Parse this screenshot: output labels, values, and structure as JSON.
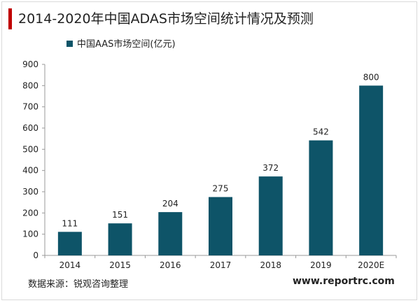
{
  "title": "2014-2020年中国ADAS市场空间统计情况及预测",
  "source": "数据来源：锐观咨询整理",
  "website": "www.reportrc.com",
  "colors": {
    "accent": "#c00000",
    "bar": "#0e5468"
  },
  "chart_data": {
    "type": "bar",
    "categories": [
      "2014",
      "2015",
      "2016",
      "2017",
      "2018",
      "2019",
      "2020E"
    ],
    "series": [
      {
        "name": "中国AAS市场空间(亿元)",
        "values": [
          111,
          151,
          204,
          275,
          372,
          542,
          800
        ]
      }
    ],
    "ylim": [
      0,
      900
    ],
    "yticks": [
      0,
      100,
      200,
      300,
      400,
      500,
      600,
      700,
      800,
      900
    ],
    "data_labels": [
      "111",
      "151",
      "204",
      "275",
      "372",
      "542",
      "800"
    ],
    "legend_position": "top-left",
    "grid": false
  }
}
